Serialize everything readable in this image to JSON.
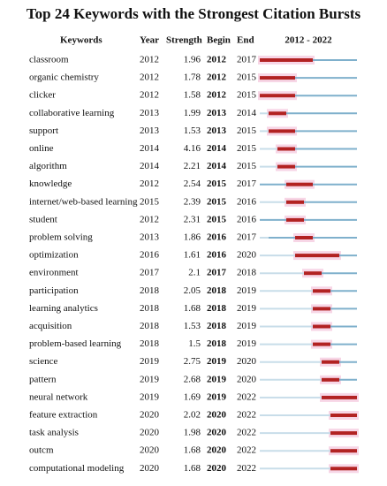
{
  "title": "Top 24 Keywords with the Strongest Citation Bursts",
  "header": {
    "keywords": "Keywords",
    "year": "Year",
    "strength": "Strength",
    "begin": "Begin",
    "end": "End",
    "range": "2012 - 2022"
  },
  "rows": [
    {
      "keyword": "classroom",
      "year": 2012,
      "strength": 1.96,
      "begin": 2012,
      "end": 2017
    },
    {
      "keyword": "organic chemistry",
      "year": 2012,
      "strength": 1.78,
      "begin": 2012,
      "end": 2015
    },
    {
      "keyword": "clicker",
      "year": 2012,
      "strength": 1.58,
      "begin": 2012,
      "end": 2015
    },
    {
      "keyword": "collaborative learning",
      "year": 2013,
      "strength": 1.99,
      "begin": 2013,
      "end": 2014
    },
    {
      "keyword": "support",
      "year": 2013,
      "strength": 1.53,
      "begin": 2013,
      "end": 2015
    },
    {
      "keyword": "online",
      "year": 2014,
      "strength": 4.16,
      "begin": 2014,
      "end": 2015
    },
    {
      "keyword": "algorithm",
      "year": 2014,
      "strength": 2.21,
      "begin": 2014,
      "end": 2015
    },
    {
      "keyword": "knowledge",
      "year": 2012,
      "strength": 2.54,
      "begin": 2015,
      "end": 2017
    },
    {
      "keyword": "internet/web-based learning",
      "year": 2015,
      "strength": 2.39,
      "begin": 2015,
      "end": 2016
    },
    {
      "keyword": "student",
      "year": 2012,
      "strength": 2.31,
      "begin": 2015,
      "end": 2016
    },
    {
      "keyword": "problem solving",
      "year": 2013,
      "strength": 1.86,
      "begin": 2016,
      "end": 2017
    },
    {
      "keyword": "optimization",
      "year": 2016,
      "strength": 1.61,
      "begin": 2016,
      "end": 2020
    },
    {
      "keyword": "environment",
      "year": 2017,
      "strength": 2.1,
      "begin": 2017,
      "end": 2018
    },
    {
      "keyword": "participation",
      "year": 2018,
      "strength": 2.05,
      "begin": 2018,
      "end": 2019
    },
    {
      "keyword": "learning analytics",
      "year": 2018,
      "strength": 1.68,
      "begin": 2018,
      "end": 2019
    },
    {
      "keyword": "acquisition",
      "year": 2018,
      "strength": 1.53,
      "begin": 2018,
      "end": 2019
    },
    {
      "keyword": "problem-based learning",
      "year": 2018,
      "strength": 1.5,
      "begin": 2018,
      "end": 2019
    },
    {
      "keyword": "science",
      "year": 2019,
      "strength": 2.75,
      "begin": 2019,
      "end": 2020
    },
    {
      "keyword": "pattern",
      "year": 2019,
      "strength": 2.68,
      "begin": 2019,
      "end": 2020
    },
    {
      "keyword": "neural network",
      "year": 2019,
      "strength": 1.69,
      "begin": 2019,
      "end": 2022
    },
    {
      "keyword": "feature extraction",
      "year": 2020,
      "strength": 2.02,
      "begin": 2020,
      "end": 2022
    },
    {
      "keyword": "task analysis",
      "year": 2020,
      "strength": 1.98,
      "begin": 2020,
      "end": 2022
    },
    {
      "keyword": "outcm",
      "year": 2020,
      "strength": 1.68,
      "begin": 2020,
      "end": 2022
    },
    {
      "keyword": "computational modeling",
      "year": 2020,
      "strength": 1.68,
      "begin": 2020,
      "end": 2022
    }
  ]
}
